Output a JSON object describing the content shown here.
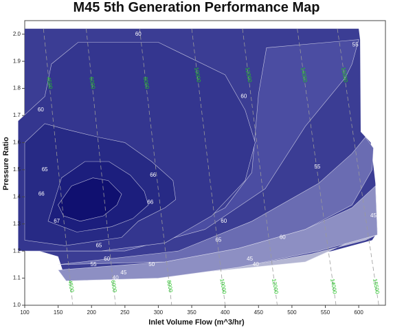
{
  "chart_data": {
    "type": "contour",
    "title": "M45 5th Generation Performance Map",
    "xlabel": "Inlet Volume Flow (m^3/hr)",
    "ylabel": "Pressure Ratio",
    "xlim": [
      100,
      640
    ],
    "ylim": [
      1.0,
      2.05
    ],
    "xticks": [
      100,
      150,
      200,
      250,
      300,
      350,
      400,
      450,
      500,
      550,
      600
    ],
    "yticks": [
      1.0,
      1.1,
      1.2,
      1.3,
      1.4,
      1.5,
      1.6,
      1.7,
      1.8,
      1.9,
      2.0
    ],
    "grid": false,
    "levels": [
      {
        "label": "45",
        "color": "#b4b6d3",
        "path": [
          [
            162,
            1.09
          ],
          [
            300,
            1.1
          ],
          [
            420,
            1.14
          ],
          [
            530,
            1.19
          ],
          [
            610,
            1.24
          ],
          [
            627,
            1.26
          ],
          [
            628,
            1.28
          ],
          [
            520,
            1.16
          ],
          [
            400,
            1.13
          ],
          [
            250,
            1.1
          ]
        ]
      },
      {
        "label": "50",
        "color": "#8d8fc3",
        "path": [
          [
            150,
            1.13
          ],
          [
            310,
            1.16
          ],
          [
            420,
            1.21
          ],
          [
            520,
            1.28
          ],
          [
            590,
            1.36
          ],
          [
            625,
            1.44
          ],
          [
            628,
            1.26
          ],
          [
            540,
            1.2
          ],
          [
            420,
            1.14
          ],
          [
            300,
            1.1
          ],
          [
            162,
            1.09
          ]
        ]
      },
      {
        "label": "55",
        "color": "#6a6cb2",
        "path": [
          [
            150,
            1.15
          ],
          [
            330,
            1.2
          ],
          [
            440,
            1.31
          ],
          [
            540,
            1.45
          ],
          [
            590,
            1.56
          ],
          [
            610,
            1.62
          ],
          [
            622,
            1.58
          ],
          [
            620,
            1.5
          ],
          [
            590,
            1.37
          ],
          [
            520,
            1.28
          ],
          [
            420,
            1.21
          ],
          [
            310,
            1.16
          ]
        ]
      },
      {
        "label": "60",
        "color": "#4b4da2",
        "path": [
          [
            125,
            1.2
          ],
          [
            240,
            1.23
          ],
          [
            330,
            1.27
          ],
          [
            400,
            1.36
          ],
          [
            440,
            1.49
          ],
          [
            450,
            1.78
          ],
          [
            462,
            1.95
          ],
          [
            600,
            1.98
          ],
          [
            590,
            1.89
          ],
          [
            580,
            1.84
          ],
          [
            520,
            1.66
          ],
          [
            460,
            1.43
          ],
          [
            370,
            1.28
          ],
          [
            250,
            1.2
          ]
        ]
      },
      {
        "label": "65",
        "color": "#34368f",
        "path": [
          [
            215,
            1.2
          ],
          [
            310,
            1.23
          ],
          [
            380,
            1.33
          ],
          [
            430,
            1.46
          ],
          [
            445,
            1.6
          ],
          [
            430,
            1.72
          ],
          [
            400,
            1.85
          ],
          [
            300,
            1.97
          ],
          [
            180,
            1.97
          ],
          [
            140,
            1.89
          ],
          [
            130,
            1.77
          ],
          [
            90,
            1.68
          ],
          [
            90,
            1.2
          ]
        ]
      },
      {
        "label": "66",
        "color": "#272a85",
        "path": [
          [
            100,
            1.6
          ],
          [
            130,
            1.67
          ],
          [
            160,
            1.65
          ],
          [
            210,
            1.62
          ],
          [
            250,
            1.6
          ],
          [
            290,
            1.53
          ],
          [
            322,
            1.46
          ],
          [
            326,
            1.39
          ],
          [
            310,
            1.36
          ],
          [
            270,
            1.31
          ],
          [
            245,
            1.25
          ],
          [
            160,
            1.22
          ],
          [
            100,
            1.24
          ]
        ]
      },
      {
        "label": "67",
        "color": "#1c1e7d",
        "path": [
          [
            135,
            1.31
          ],
          [
            155,
            1.47
          ],
          [
            190,
            1.53
          ],
          [
            226,
            1.53
          ],
          [
            258,
            1.48
          ],
          [
            279,
            1.42
          ],
          [
            285,
            1.37
          ],
          [
            262,
            1.32
          ],
          [
            230,
            1.29
          ],
          [
            178,
            1.27
          ]
        ]
      },
      {
        "label": "",
        "color": "#101070",
        "path": [
          [
            150,
            1.37
          ],
          [
            170,
            1.44
          ],
          [
            202,
            1.47
          ],
          [
            225,
            1.46
          ],
          [
            245,
            1.41
          ],
          [
            238,
            1.37
          ],
          [
            218,
            1.33
          ],
          [
            183,
            1.31
          ],
          [
            158,
            1.33
          ]
        ]
      }
    ],
    "contour_labels": [
      {
        "text": "60",
        "x": 270,
        "y": 2.0
      },
      {
        "text": "60",
        "x": 124,
        "y": 1.72
      },
      {
        "text": "60",
        "x": 428,
        "y": 1.77
      },
      {
        "text": "65",
        "x": 130,
        "y": 1.5
      },
      {
        "text": "66",
        "x": 125,
        "y": 1.41
      },
      {
        "text": "66",
        "x": 292,
        "y": 1.48
      },
      {
        "text": "66",
        "x": 288,
        "y": 1.38
      },
      {
        "text": "67",
        "x": 148,
        "y": 1.31
      },
      {
        "text": "60",
        "x": 398,
        "y": 1.31
      },
      {
        "text": "65",
        "x": 390,
        "y": 1.24
      },
      {
        "text": "60",
        "x": 486,
        "y": 1.25
      },
      {
        "text": "55",
        "x": 538,
        "y": 1.51
      },
      {
        "text": "50",
        "x": 626,
        "y": 1.52
      },
      {
        "text": "45",
        "x": 622,
        "y": 1.33
      },
      {
        "text": "55",
        "x": 595,
        "y": 1.96
      },
      {
        "text": "65",
        "x": 211,
        "y": 1.22
      },
      {
        "text": "60",
        "x": 223,
        "y": 1.17
      },
      {
        "text": "55",
        "x": 203,
        "y": 1.15
      },
      {
        "text": "50",
        "x": 290,
        "y": 1.15
      },
      {
        "text": "45",
        "x": 248,
        "y": 1.12
      },
      {
        "text": "45",
        "x": 437,
        "y": 1.17
      },
      {
        "text": "40",
        "x": 446,
        "y": 1.15
      },
      {
        "text": "40",
        "x": 236,
        "y": 1.1
      }
    ],
    "speed_lines": [
      {
        "label": "4500",
        "top": [
          128,
          2.02
        ],
        "bottom": [
          172,
          1.0
        ],
        "top_label_y": 1.82,
        "bottom_label_y": 1.07
      },
      {
        "label": "6000",
        "top": [
          192,
          2.02
        ],
        "bottom": [
          236,
          1.0
        ],
        "top_label_y": 1.82,
        "bottom_label_y": 1.07
      },
      {
        "label": "8000",
        "top": [
          272,
          2.02
        ],
        "bottom": [
          320,
          1.0
        ],
        "top_label_y": 1.82,
        "bottom_label_y": 1.07
      },
      {
        "label": "10000",
        "top": [
          350,
          2.02
        ],
        "bottom": [
          400,
          1.0
        ],
        "top_label_y": 1.85,
        "bottom_label_y": 1.07
      },
      {
        "label": "12000",
        "top": [
          426,
          2.02
        ],
        "bottom": [
          478,
          1.0
        ],
        "top_label_y": 1.85,
        "bottom_label_y": 1.07
      },
      {
        "label": "14000",
        "top": [
          508,
          2.02
        ],
        "bottom": [
          566,
          1.0
        ],
        "top_label_y": 1.85,
        "bottom_label_y": 1.07
      },
      {
        "label": "15500",
        "top": [
          568,
          2.02
        ],
        "bottom": [
          630,
          1.0
        ],
        "top_label_y": 1.85,
        "bottom_label_y": 1.07
      }
    ]
  }
}
